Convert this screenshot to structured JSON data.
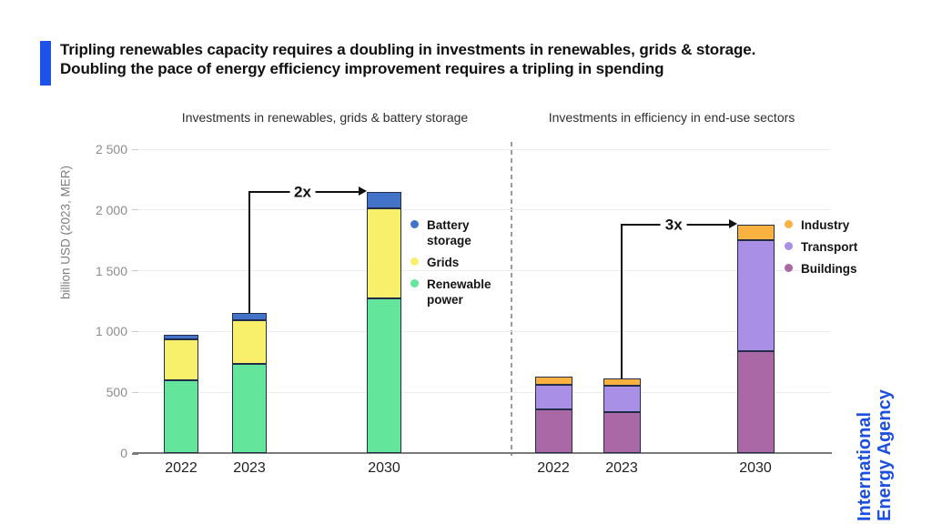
{
  "header": {
    "title_line1": "Tripling renewables capacity requires a doubling in investments in renewables, grids & storage.",
    "title_line2": "Doubling the pace of energy efficiency improvement requires a tripling in spending",
    "accent_color": "#1d52e8"
  },
  "branding": {
    "line1": "International",
    "line2": "Energy Agency",
    "color": "#1d4fe0"
  },
  "chart_data": {
    "type": "bar",
    "stacked": true,
    "ylabel": "billion USD (2023, MER)",
    "ylim": [
      0,
      2500
    ],
    "grid": true,
    "yticks": [
      {
        "v": 0,
        "label": "0"
      },
      {
        "v": 500,
        "label": "500"
      },
      {
        "v": 1000,
        "label": "1 000"
      },
      {
        "v": 1500,
        "label": "1 500"
      },
      {
        "v": 2000,
        "label": "2 000"
      },
      {
        "v": 2500,
        "label": "2 500"
      }
    ],
    "panels": [
      {
        "title": "Investments in renewables, grids & battery storage",
        "categories": [
          "2022",
          "2023",
          "2030"
        ],
        "series": [
          {
            "name": "Renewable power",
            "color": "#63e69c",
            "values": [
              600,
              730,
              1270
            ]
          },
          {
            "name": "Grids",
            "color": "#f8ef6b",
            "values": [
              335,
              365,
              745
            ]
          },
          {
            "name": "Battery storage",
            "color": "#4373c8",
            "values": [
              35,
              55,
              135
            ]
          }
        ],
        "totals": [
          970,
          1150,
          2150
        ],
        "legend": [
          {
            "label": "Battery storage",
            "color": "#4373c8"
          },
          {
            "label": "Grids",
            "color": "#f8ef6b"
          },
          {
            "label": "Renewable power",
            "color": "#63e69c"
          }
        ],
        "annotation": {
          "label": "2x",
          "from_category": "2023",
          "to_category": "2030"
        },
        "legend_position": "right-of-2030-bar"
      },
      {
        "title": "Investments in efficiency in end-use sectors",
        "categories": [
          "2022",
          "2023",
          "2030"
        ],
        "series": [
          {
            "name": "Buildings",
            "color": "#ab68a6",
            "values": [
              360,
              340,
              840
            ]
          },
          {
            "name": "Transport",
            "color": "#a98fe6",
            "values": [
              205,
              215,
              915
            ]
          },
          {
            "name": "Industry",
            "color": "#f9b240",
            "values": [
              65,
              60,
              125
            ]
          }
        ],
        "totals": [
          630,
          615,
          1880
        ],
        "legend": [
          {
            "label": "Industry",
            "color": "#f9b240"
          },
          {
            "label": "Transport",
            "color": "#a98fe6"
          },
          {
            "label": "Buildings",
            "color": "#ab68a6"
          }
        ],
        "annotation": {
          "label": "3x",
          "from_category": "2023",
          "to_category": "2030"
        },
        "legend_position": "right-of-2030-bar"
      }
    ]
  }
}
